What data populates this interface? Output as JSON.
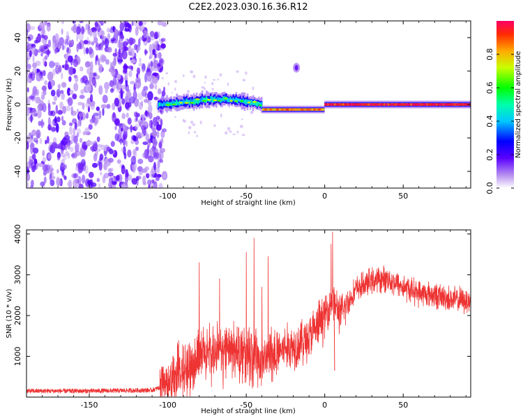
{
  "figure": {
    "title": "C2E2.2023.030.16.36.R12"
  },
  "chart_data": [
    {
      "type": "heatmap",
      "title": "C2E2.2023.030.16.36.R12",
      "xlabel": "Height of straight line (km)",
      "ylabel": "Frequency (Hz)",
      "xlim": [
        -190,
        93
      ],
      "ylim": [
        -50,
        50
      ],
      "x_ticks": [
        -150,
        -100,
        -50,
        0,
        50
      ],
      "y_ticks": [
        -40,
        -20,
        0,
        20,
        40
      ],
      "colorbar": {
        "label": "Normalized spectral amplitude",
        "range": [
          0,
          1
        ],
        "ticks": [
          "0.0",
          "0.2",
          "0.4",
          "0.6",
          "0.8"
        ],
        "colormap": "rainbow"
      },
      "regions": [
        {
          "x_range": [
            -190,
            -105
          ],
          "description_value": "scattered noise",
          "amplitude": 0.1
        },
        {
          "x_range": [
            -105,
            -40
          ],
          "center_freq": [
            0,
            1,
            2,
            3,
            3,
            2,
            0
          ],
          "amplitude": 0.45
        },
        {
          "x_range": [
            -40,
            0
          ],
          "center_freq": -3,
          "amplitude": 0.8
        },
        {
          "x_range": [
            0,
            93
          ],
          "center_freq": 0,
          "amplitude": 0.9
        }
      ],
      "isolated_blob": {
        "x": -18,
        "y": 22
      }
    },
    {
      "type": "line",
      "xlabel": "Height of straight line (km)",
      "ylabel": "SNR (10 * v/v)",
      "xlim": [
        -190,
        93
      ],
      "ylim": [
        0,
        4100
      ],
      "x_ticks": [
        -150,
        -100,
        -50,
        0,
        50
      ],
      "y_ticks": [
        1000,
        2000,
        3000,
        4000
      ],
      "color": "#ee3333",
      "envelope": {
        "x": [
          -190,
          -150,
          -110,
          -100,
          -90,
          -80,
          -70,
          -60,
          -50,
          -40,
          -30,
          -20,
          -10,
          -5,
          0,
          5,
          10,
          20,
          30,
          40,
          50,
          60,
          70,
          80,
          93
        ],
        "y": [
          150,
          150,
          170,
          300,
          700,
          1000,
          1100,
          1150,
          1050,
          1000,
          1150,
          1250,
          1450,
          1700,
          2000,
          2400,
          2000,
          2650,
          2850,
          2900,
          2700,
          2550,
          2500,
          2400,
          2350
        ]
      },
      "spikes": [
        {
          "x": -80,
          "y": 3300
        },
        {
          "x": -67,
          "y": 2900
        },
        {
          "x": -50,
          "y": 3550
        },
        {
          "x": -45,
          "y": 3900
        },
        {
          "x": -40,
          "y": 2700
        },
        {
          "x": -36,
          "y": 3450
        },
        {
          "x": 4,
          "y": 3750
        },
        {
          "x": 5,
          "y": 4050
        }
      ]
    }
  ]
}
